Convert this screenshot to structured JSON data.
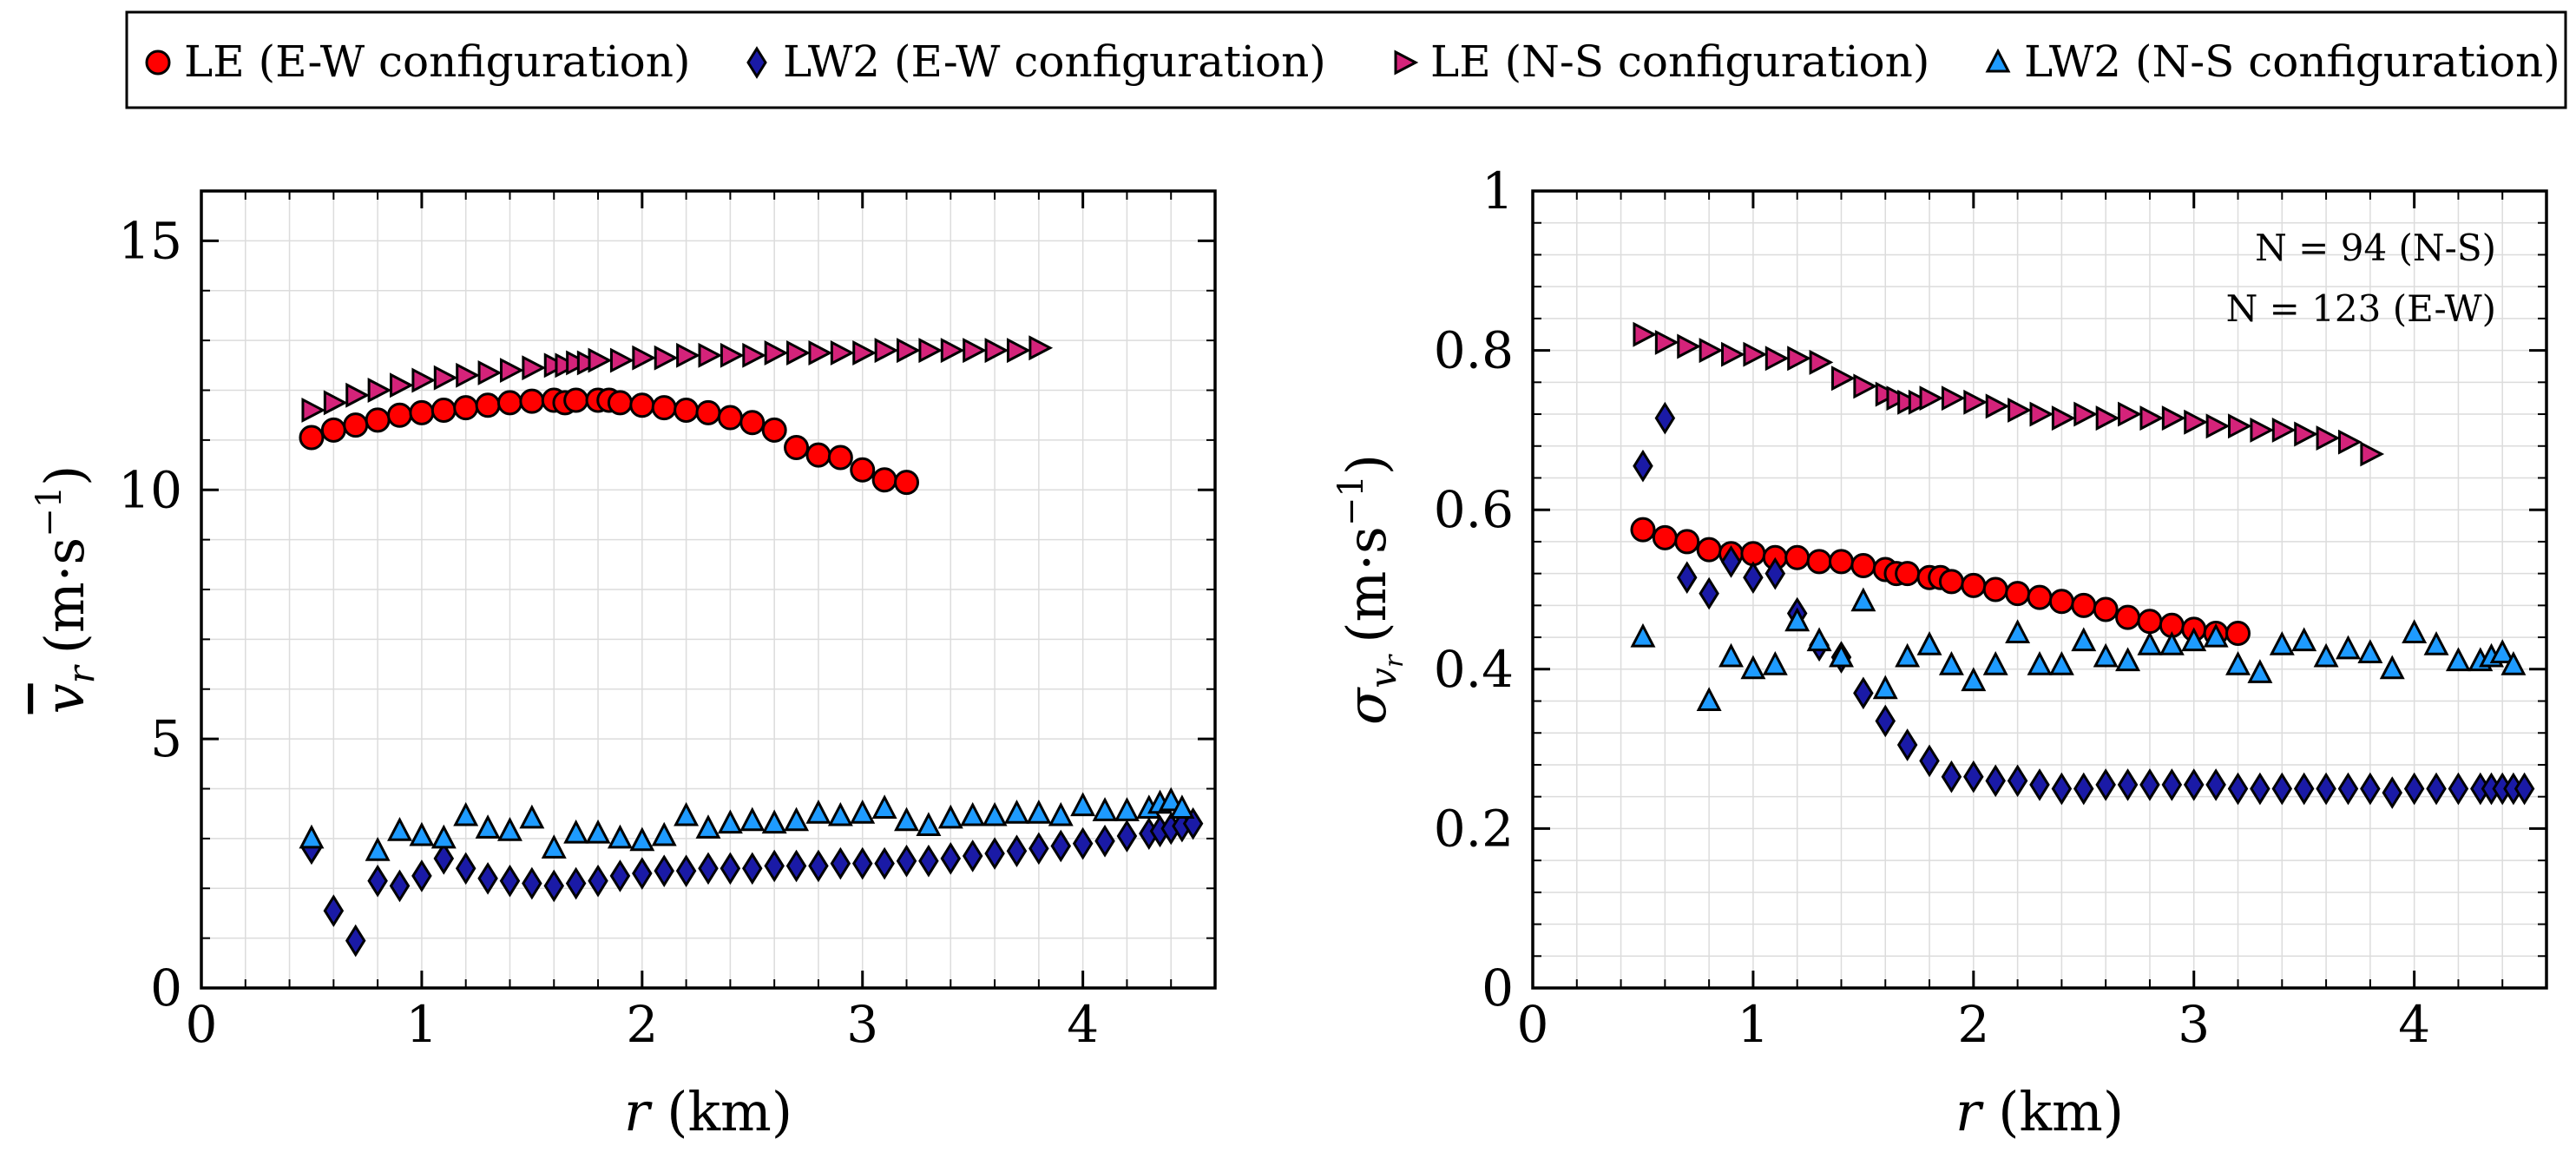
{
  "chart_data": [
    {
      "type": "scatter",
      "ylabel_symbol": "v",
      "ylabel_sub": "r",
      "ylabel_units": "(m·s",
      "ylabel_exp": "−1",
      "ylabel_close": ")",
      "xlabel_var": "r",
      "xlabel_units": " (km)",
      "xlim": [
        0,
        4.6
      ],
      "ylim": [
        0,
        16
      ],
      "xticks": [
        0,
        1,
        2,
        3,
        4
      ],
      "yticks": [
        0,
        5,
        10,
        15
      ],
      "grid": true,
      "series": [
        {
          "name": "LE (E-W configuration)",
          "x": [
            0.5,
            0.6,
            0.7,
            0.8,
            0.9,
            1.0,
            1.1,
            1.2,
            1.3,
            1.4,
            1.5,
            1.6,
            1.65,
            1.7,
            1.8,
            1.85,
            1.9,
            2.0,
            2.1,
            2.2,
            2.3,
            2.4,
            2.5,
            2.6,
            2.7,
            2.8,
            2.9,
            3.0,
            3.1,
            3.2
          ],
          "y": [
            11.05,
            11.2,
            11.3,
            11.4,
            11.5,
            11.55,
            11.6,
            11.65,
            11.7,
            11.75,
            11.78,
            11.8,
            11.75,
            11.8,
            11.8,
            11.8,
            11.75,
            11.7,
            11.65,
            11.6,
            11.55,
            11.45,
            11.35,
            11.2,
            10.85,
            10.7,
            10.65,
            10.4,
            10.2,
            10.15
          ]
        },
        {
          "name": "LW2 (E-W configuration)",
          "x": [
            0.5,
            0.6,
            0.7,
            0.8,
            0.9,
            1.0,
            1.1,
            1.2,
            1.3,
            1.4,
            1.5,
            1.6,
            1.7,
            1.8,
            1.9,
            2.0,
            2.1,
            2.2,
            2.3,
            2.4,
            2.5,
            2.6,
            2.7,
            2.8,
            2.9,
            3.0,
            3.1,
            3.2,
            3.3,
            3.4,
            3.5,
            3.6,
            3.7,
            3.8,
            3.9,
            4.0,
            4.1,
            4.2,
            4.3,
            4.35,
            4.4,
            4.45,
            4.5
          ],
          "y": [
            2.8,
            1.55,
            0.95,
            2.15,
            2.05,
            2.25,
            2.6,
            2.4,
            2.2,
            2.15,
            2.1,
            2.05,
            2.1,
            2.15,
            2.25,
            2.3,
            2.35,
            2.35,
            2.4,
            2.4,
            2.4,
            2.45,
            2.45,
            2.45,
            2.5,
            2.5,
            2.5,
            2.55,
            2.55,
            2.6,
            2.65,
            2.7,
            2.75,
            2.8,
            2.85,
            2.9,
            2.95,
            3.05,
            3.1,
            3.15,
            3.2,
            3.25,
            3.3
          ]
        },
        {
          "name": "LE (N-S configuration)",
          "x": [
            0.5,
            0.6,
            0.7,
            0.8,
            0.9,
            1.0,
            1.1,
            1.2,
            1.3,
            1.4,
            1.5,
            1.6,
            1.65,
            1.7,
            1.75,
            1.8,
            1.9,
            2.0,
            2.1,
            2.2,
            2.3,
            2.4,
            2.5,
            2.6,
            2.7,
            2.8,
            2.9,
            3.0,
            3.1,
            3.2,
            3.3,
            3.4,
            3.5,
            3.6,
            3.7,
            3.8
          ],
          "y": [
            11.6,
            11.75,
            11.9,
            12.0,
            12.1,
            12.2,
            12.25,
            12.3,
            12.35,
            12.4,
            12.45,
            12.5,
            12.5,
            12.55,
            12.55,
            12.6,
            12.6,
            12.65,
            12.65,
            12.7,
            12.7,
            12.7,
            12.7,
            12.75,
            12.75,
            12.75,
            12.75,
            12.75,
            12.8,
            12.8,
            12.8,
            12.8,
            12.8,
            12.8,
            12.8,
            12.85
          ]
        },
        {
          "name": "LW2 (N-S configuration)",
          "x": [
            0.5,
            0.8,
            0.9,
            1.0,
            1.1,
            1.2,
            1.3,
            1.4,
            1.5,
            1.6,
            1.7,
            1.8,
            1.9,
            2.0,
            2.1,
            2.2,
            2.3,
            2.4,
            2.5,
            2.6,
            2.7,
            2.8,
            2.9,
            3.0,
            3.1,
            3.2,
            3.3,
            3.4,
            3.5,
            3.6,
            3.7,
            3.8,
            3.9,
            4.0,
            4.1,
            4.2,
            4.3,
            4.35,
            4.4,
            4.45
          ],
          "y": [
            3.0,
            2.75,
            3.15,
            3.05,
            3.0,
            3.45,
            3.2,
            3.15,
            3.4,
            2.8,
            3.1,
            3.1,
            3.0,
            2.95,
            3.05,
            3.45,
            3.2,
            3.3,
            3.35,
            3.3,
            3.35,
            3.5,
            3.45,
            3.5,
            3.6,
            3.35,
            3.25,
            3.4,
            3.45,
            3.45,
            3.5,
            3.5,
            3.45,
            3.65,
            3.55,
            3.55,
            3.6,
            3.7,
            3.75,
            3.6
          ]
        }
      ]
    },
    {
      "type": "scatter",
      "ylabel_symbol": "σ",
      "ylabel_sub": "v",
      "ylabel_subsub": "r",
      "ylabel_units": "(m·s",
      "ylabel_exp": "−1",
      "ylabel_close": ")",
      "xlabel_var": "r",
      "xlabel_units": " (km)",
      "xlim": [
        0,
        4.6
      ],
      "ylim": [
        0,
        1
      ],
      "xticks": [
        0,
        1,
        2,
        3,
        4
      ],
      "yticks": [
        0,
        0.2,
        0.4,
        0.6,
        0.8,
        1
      ],
      "ytick_labels": [
        "0",
        "0.2",
        "0.4",
        "0.6",
        "0.8",
        "1"
      ],
      "grid": true,
      "annotations": [
        "N = 94 (N-S)",
        "N = 123 (E-W)"
      ],
      "series": [
        {
          "name": "LE (E-W configuration)",
          "x": [
            0.5,
            0.6,
            0.7,
            0.8,
            0.9,
            1.0,
            1.1,
            1.2,
            1.3,
            1.4,
            1.5,
            1.6,
            1.65,
            1.7,
            1.8,
            1.85,
            1.9,
            2.0,
            2.1,
            2.2,
            2.3,
            2.4,
            2.5,
            2.6,
            2.7,
            2.8,
            2.9,
            3.0,
            3.1,
            3.2
          ],
          "y": [
            0.575,
            0.565,
            0.56,
            0.55,
            0.545,
            0.545,
            0.54,
            0.54,
            0.535,
            0.535,
            0.53,
            0.525,
            0.52,
            0.52,
            0.515,
            0.515,
            0.51,
            0.505,
            0.5,
            0.495,
            0.49,
            0.485,
            0.48,
            0.475,
            0.465,
            0.46,
            0.455,
            0.45,
            0.445,
            0.445
          ]
        },
        {
          "name": "LW2 (E-W configuration)",
          "x": [
            0.5,
            0.6,
            0.7,
            0.8,
            0.9,
            1.0,
            1.1,
            1.2,
            1.3,
            1.4,
            1.5,
            1.6,
            1.7,
            1.8,
            1.9,
            2.0,
            2.1,
            2.2,
            2.3,
            2.4,
            2.5,
            2.6,
            2.7,
            2.8,
            2.9,
            3.0,
            3.1,
            3.2,
            3.3,
            3.4,
            3.5,
            3.6,
            3.7,
            3.8,
            3.9,
            4.0,
            4.1,
            4.2,
            4.3,
            4.35,
            4.4,
            4.45,
            4.5
          ],
          "y": [
            0.655,
            0.715,
            0.515,
            0.495,
            0.535,
            0.515,
            0.52,
            0.47,
            0.43,
            0.415,
            0.37,
            0.335,
            0.305,
            0.285,
            0.265,
            0.265,
            0.26,
            0.26,
            0.255,
            0.25,
            0.25,
            0.255,
            0.255,
            0.255,
            0.255,
            0.255,
            0.255,
            0.25,
            0.25,
            0.25,
            0.25,
            0.25,
            0.25,
            0.25,
            0.245,
            0.25,
            0.25,
            0.25,
            0.25,
            0.25,
            0.25,
            0.25,
            0.25
          ]
        },
        {
          "name": "LE (N-S configuration)",
          "x": [
            0.5,
            0.6,
            0.7,
            0.8,
            0.9,
            1.0,
            1.1,
            1.2,
            1.3,
            1.4,
            1.5,
            1.6,
            1.65,
            1.7,
            1.75,
            1.8,
            1.9,
            2.0,
            2.1,
            2.2,
            2.3,
            2.4,
            2.5,
            2.6,
            2.7,
            2.8,
            2.9,
            3.0,
            3.1,
            3.2,
            3.3,
            3.4,
            3.5,
            3.6,
            3.7,
            3.8
          ],
          "y": [
            0.82,
            0.81,
            0.805,
            0.8,
            0.795,
            0.795,
            0.79,
            0.79,
            0.785,
            0.765,
            0.755,
            0.745,
            0.74,
            0.735,
            0.735,
            0.74,
            0.74,
            0.735,
            0.73,
            0.725,
            0.72,
            0.715,
            0.72,
            0.715,
            0.72,
            0.715,
            0.715,
            0.71,
            0.705,
            0.705,
            0.7,
            0.7,
            0.695,
            0.69,
            0.685,
            0.67
          ]
        },
        {
          "name": "LW2 (N-S configuration)",
          "x": [
            0.5,
            0.8,
            0.9,
            1.0,
            1.1,
            1.2,
            1.3,
            1.4,
            1.5,
            1.6,
            1.7,
            1.8,
            1.9,
            2.0,
            2.1,
            2.2,
            2.3,
            2.4,
            2.5,
            2.6,
            2.7,
            2.8,
            2.9,
            3.0,
            3.1,
            3.2,
            3.3,
            3.4,
            3.5,
            3.6,
            3.7,
            3.8,
            3.9,
            4.0,
            4.1,
            4.2,
            4.3,
            4.35,
            4.4,
            4.45
          ],
          "y": [
            0.44,
            0.36,
            0.415,
            0.4,
            0.405,
            0.46,
            0.435,
            0.415,
            0.485,
            0.375,
            0.415,
            0.43,
            0.405,
            0.385,
            0.405,
            0.445,
            0.405,
            0.405,
            0.435,
            0.415,
            0.41,
            0.43,
            0.43,
            0.435,
            0.44,
            0.405,
            0.395,
            0.43,
            0.435,
            0.415,
            0.425,
            0.42,
            0.4,
            0.445,
            0.43,
            0.41,
            0.41,
            0.415,
            0.42,
            0.405
          ]
        }
      ]
    }
  ],
  "legend": [
    {
      "label": "LE (E-W configuration)",
      "marker": "circle",
      "fill": "#ff0000"
    },
    {
      "label": "LW2 (E-W configuration)",
      "marker": "diamond",
      "fill": "#1a1aa6"
    },
    {
      "label": "LE (N-S configuration)",
      "marker": "triangle-right",
      "fill": "#d4237a"
    },
    {
      "label": "LW2 (N-S configuration)",
      "marker": "triangle-up",
      "fill": "#1e9bff"
    }
  ],
  "colors": {
    "le_ew": "#ff0000",
    "lw2_ew": "#1a1aa6",
    "le_ns": "#d4237a",
    "lw2_ns": "#1e9bff",
    "grid": "#dcdcdc",
    "axis": "#000000"
  }
}
